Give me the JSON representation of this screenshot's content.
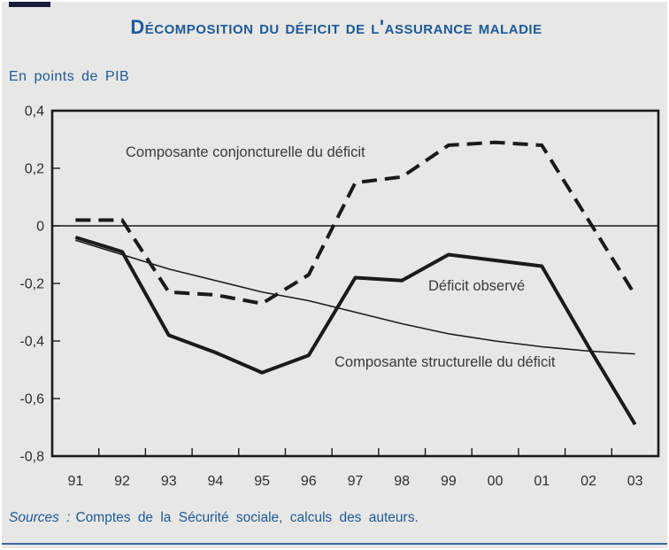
{
  "page": {
    "title": "Décomposition du déficit de l'assurance maladie",
    "unit_label": "En points de PIB",
    "source_prefix": "Sources :",
    "source_text": "Comptes de la Sécurité sociale, calculs des auteurs.",
    "accent_color": "#1b5a9b",
    "background_color": "#e7e7e5",
    "bottom_rule_color": "#3a6ba3",
    "line_color": "#1a1a1a"
  },
  "chart_data": {
    "type": "line",
    "title": "Décomposition du déficit de l'assurance maladie",
    "xlabel": "",
    "ylabel": "En points de PIB",
    "categories": [
      "91",
      "92",
      "93",
      "94",
      "95",
      "96",
      "97",
      "98",
      "99",
      "00",
      "01",
      "02",
      "03"
    ],
    "ylim": [
      -0.8,
      0.4
    ],
    "grid": false,
    "tick_style": "x-ticks-between-categories",
    "legend_position": "inline-annotations",
    "y_ticks": [
      {
        "label": "0,4",
        "value": 0.4
      },
      {
        "label": "0,2",
        "value": 0.2
      },
      {
        "label": "0",
        "value": 0.0
      },
      {
        "label": "-0,2",
        "value": -0.2
      },
      {
        "label": "-0,4",
        "value": -0.4
      },
      {
        "label": "-0,6",
        "value": -0.6
      },
      {
        "label": "-0,8",
        "value": -0.8
      }
    ],
    "series": [
      {
        "name": "Composante conjoncturelle du déficit",
        "style": "dashed-thick",
        "values": [
          0.02,
          0.02,
          -0.23,
          -0.24,
          -0.27,
          -0.17,
          0.15,
          0.17,
          0.28,
          0.29,
          0.28,
          0.02,
          -0.24
        ]
      },
      {
        "name": "Déficit observé",
        "style": "solid-thick",
        "values": [
          -0.04,
          -0.09,
          -0.38,
          -0.44,
          -0.51,
          -0.45,
          -0.18,
          -0.19,
          -0.1,
          -0.12,
          -0.14,
          -0.42,
          -0.69
        ]
      },
      {
        "name": "Composante structurelle du déficit",
        "style": "solid-thin",
        "values": [
          -0.05,
          -0.1,
          -0.15,
          -0.19,
          -0.23,
          -0.26,
          -0.3,
          -0.34,
          -0.375,
          -0.4,
          -0.42,
          -0.435,
          -0.445
        ]
      }
    ]
  }
}
